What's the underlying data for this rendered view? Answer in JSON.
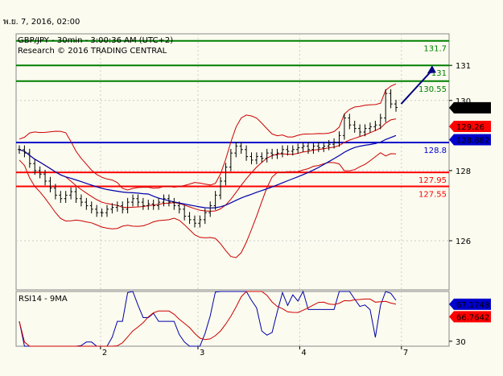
{
  "topbar": {
    "date": "พ.ย. 7, 2016, 02:00"
  },
  "chart_data": {
    "type": "candlestick",
    "title": "GBP/JPY - 30min - 3:00:36 AM (UTC+2)",
    "subtitle": "Research © 2016 TRADING CENTRAL",
    "ylim": [
      124.6,
      131.9
    ],
    "y_ticks": [
      126,
      128,
      130,
      131
    ],
    "x_ticks": [
      {
        "label": "2",
        "pos": 0.195
      },
      {
        "label": "3",
        "pos": 0.42
      },
      {
        "label": "4",
        "pos": 0.655
      },
      {
        "label": "7",
        "pos": 0.89
      }
    ],
    "levels": [
      {
        "label": "131.7",
        "value": 131.7,
        "color": "#008000"
      },
      {
        "label": "131",
        "value": 131.0,
        "color": "#008000"
      },
      {
        "label": "130.55",
        "value": 130.55,
        "color": "#008000"
      },
      {
        "label": "128.8",
        "value": 128.8,
        "color": "#0000cc"
      },
      {
        "label": "127.95",
        "value": 127.95,
        "color": "#ff0000"
      },
      {
        "label": "127.55",
        "value": 127.55,
        "color": "#ff0000"
      }
    ],
    "price_tags": [
      {
        "label": "129.792",
        "value": 129.792,
        "bg": "#000000",
        "fg": "#ffffff"
      },
      {
        "label": "129.26",
        "value": 129.26,
        "bg": "#ff0000",
        "fg": "#000000"
      },
      {
        "label": "128.882",
        "value": 128.882,
        "bg": "#0000cc",
        "fg": "#ffffff"
      }
    ],
    "close_series": [
      128.6,
      128.5,
      128.2,
      128.0,
      127.9,
      127.7,
      127.5,
      127.3,
      127.2,
      127.3,
      127.4,
      127.2,
      127.1,
      127.0,
      126.9,
      126.8,
      126.8,
      126.9,
      126.95,
      127.0,
      126.9,
      127.1,
      127.2,
      127.1,
      127.0,
      127.05,
      127.0,
      127.1,
      127.2,
      127.1,
      127.0,
      126.9,
      126.7,
      126.6,
      126.5,
      126.6,
      126.8,
      127.0,
      127.3,
      127.7,
      128.1,
      128.5,
      128.7,
      128.6,
      128.4,
      128.3,
      128.4,
      128.35,
      128.5,
      128.45,
      128.5,
      128.6,
      128.55,
      128.6,
      128.65,
      128.7,
      128.6,
      128.7,
      128.65,
      128.7,
      128.75,
      128.8,
      129.0,
      129.5,
      129.3,
      129.2,
      129.1,
      129.2,
      129.25,
      129.3,
      129.5,
      130.2,
      129.9,
      129.8
    ],
    "arrow": {
      "from": {
        "i": 74,
        "value": 129.9
      },
      "to": {
        "i": 80,
        "value": 131.0
      }
    },
    "rsi": {
      "title": "RSI14 - 9MA",
      "ylim": [
        25,
        80
      ],
      "ticks": [
        30
      ],
      "tags": [
        {
          "label": "67.1748",
          "value": 67.1748,
          "bg": "#0000cc",
          "fg": "#ffffff"
        },
        {
          "label": "66.7642",
          "value": 66.7642,
          "bg": "#ff0000",
          "fg": "#000000"
        }
      ]
    }
  }
}
